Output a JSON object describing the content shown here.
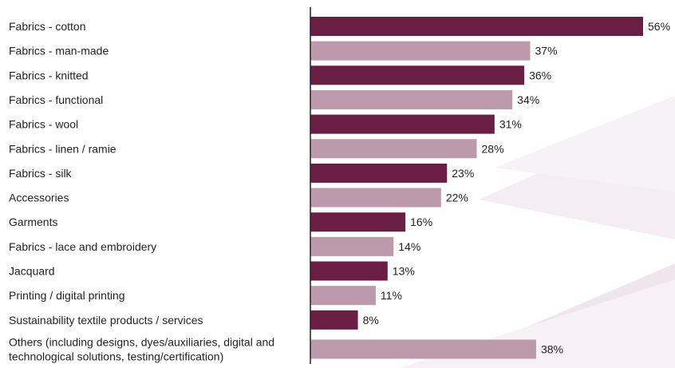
{
  "chart_data": {
    "type": "bar",
    "orientation": "horizontal",
    "categories": [
      "Fabrics - cotton",
      "Fabrics - man-made",
      "Fabrics - knitted",
      "Fabrics - functional",
      "Fabrics - wool",
      "Fabrics - linen / ramie",
      "Fabrics - silk",
      "Accessories",
      "Garments",
      "Fabrics - lace and embroidery",
      "Jacquard",
      "Printing / digital printing",
      "Sustainability textile products / services",
      "Others (including designs, dyes/auxiliaries, digital and technological solutions, testing/certification)"
    ],
    "category_lines": [
      [
        "Fabrics - cotton"
      ],
      [
        "Fabrics - man-made"
      ],
      [
        "Fabrics - knitted"
      ],
      [
        "Fabrics - functional"
      ],
      [
        "Fabrics - wool"
      ],
      [
        "Fabrics - linen / ramie"
      ],
      [
        "Fabrics - silk"
      ],
      [
        "Accessories"
      ],
      [
        "Garments"
      ],
      [
        "Fabrics - lace and embroidery"
      ],
      [
        "Jacquard"
      ],
      [
        "Printing / digital printing"
      ],
      [
        "Sustainability textile products / services"
      ],
      [
        "Others (including designs, dyes/auxiliaries, digital and",
        "technological solutions, testing/certification)"
      ]
    ],
    "values": [
      56,
      37,
      36,
      34,
      31,
      28,
      23,
      22,
      16,
      14,
      13,
      11,
      8,
      38
    ],
    "value_labels": [
      "56%",
      "37%",
      "36%",
      "34%",
      "31%",
      "28%",
      "23%",
      "22%",
      "16%",
      "14%",
      "13%",
      "11%",
      "8%",
      "38%"
    ],
    "unit": "%",
    "xlim": [
      0,
      56
    ],
    "grid": false,
    "colors": {
      "dark": "#6a1e44",
      "light": "#bc9aab",
      "axis": "#222222",
      "text": "#222222"
    }
  }
}
